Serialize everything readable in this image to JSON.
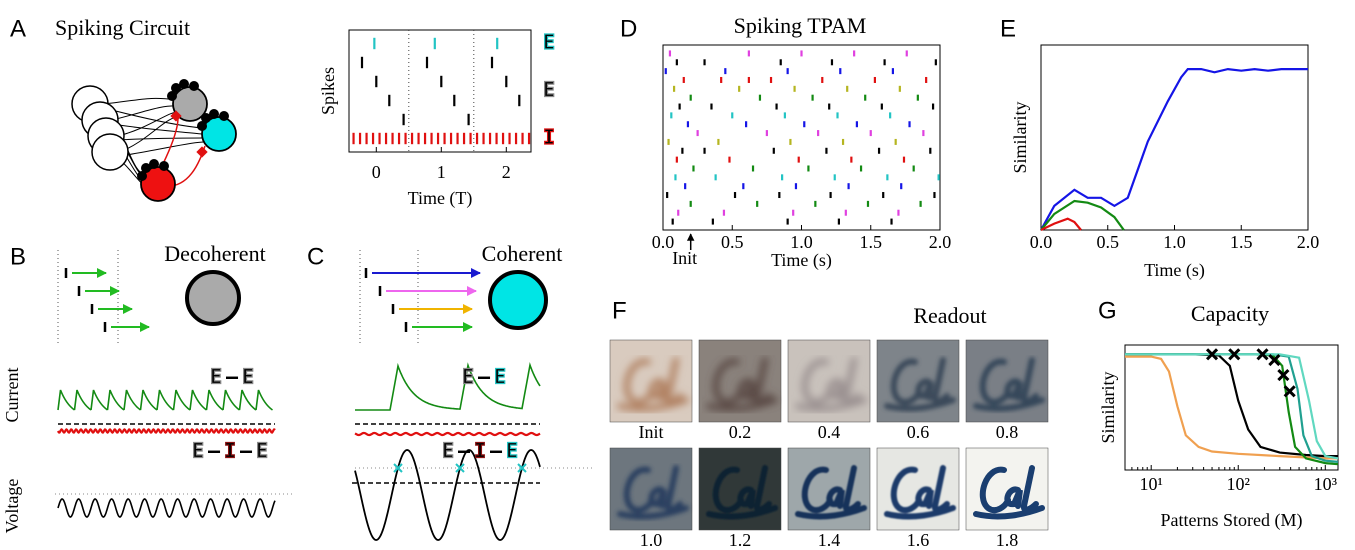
{
  "panels": {
    "A": {
      "letter": "A",
      "title": "Spiking Circuit"
    },
    "B": {
      "letter": "B",
      "title": "Decoherent",
      "current_label": "Current",
      "voltage_label": "Voltage",
      "ee": [
        "E",
        "–",
        "E"
      ],
      "eie": [
        "E",
        "–",
        "I",
        "–",
        "E"
      ]
    },
    "C": {
      "letter": "C",
      "title": "Coherent",
      "ee": [
        "E",
        "–",
        "E"
      ],
      "eie": [
        "E",
        "–",
        "I",
        "–",
        "E"
      ]
    },
    "D": {
      "letter": "D",
      "title": "Spiking TPAM"
    },
    "E": {
      "letter": "E"
    },
    "F": {
      "letter": "F",
      "title": "Readout",
      "images": [
        "Init",
        "0.2",
        "0.4",
        "0.6",
        "0.8",
        "1.0",
        "1.2",
        "1.4",
        "1.6",
        "1.8"
      ]
    },
    "G": {
      "letter": "G",
      "title": "Capacity"
    }
  },
  "chart_data": [
    {
      "type": "raster",
      "ylabel": "Spikes",
      "xlabel": "Time (T)",
      "xlim": [
        -0.42,
        2.38
      ],
      "xticks": [
        0,
        1,
        2
      ],
      "period_lines": [
        0.5,
        1.5
      ],
      "series": [
        {
          "name": "E",
          "color": "#22c4c4",
          "rows": [
            [
              -0.03,
              0.9,
              1.86
            ]
          ]
        },
        {
          "name": "E",
          "color": "#000000",
          "rows": [
            [
              -0.22,
              0.78,
              1.78
            ],
            [
              0.0,
              1.0,
              2.0
            ],
            [
              0.2,
              1.2,
              2.2
            ],
            [
              0.42,
              1.42
            ]
          ]
        },
        {
          "name": "I",
          "color": "#e01010",
          "rows": [
            [
              -0.35,
              -0.25,
              -0.15,
              -0.05,
              0.05,
              0.15,
              0.25,
              0.35,
              0.45,
              0.55,
              0.65,
              0.75,
              0.85,
              0.95,
              1.05,
              1.15,
              1.25,
              1.35,
              1.45,
              1.55,
              1.65,
              1.75,
              1.85,
              1.95,
              2.05,
              2.15,
              2.25,
              2.35
            ]
          ]
        }
      ]
    },
    {
      "type": "raster",
      "xlabel": "Time (s)",
      "annotation": {
        "text": "Init",
        "x": 0.2
      },
      "xlim": [
        0,
        2.0
      ],
      "xticks": [
        {
          "value": 0,
          "label": "0.0"
        },
        0.5,
        {
          "value": 1,
          "label": "1.0"
        },
        1.5,
        {
          "value": 2,
          "label": "2.0"
        }
      ],
      "rows": [
        {
          "color": "#e040e0",
          "x": [
            0.05,
            0.62,
            1.0,
            1.38,
            1.76
          ]
        },
        {
          "color": "#000000",
          "x": [
            0.1,
            0.3,
            0.85,
            1.22,
            1.6,
            1.97
          ]
        },
        {
          "color": "#1515e6",
          "x": [
            0.02,
            0.45,
            0.9,
            1.28,
            1.66
          ]
        },
        {
          "color": "#e01010",
          "x": [
            0.15,
            0.42,
            0.62,
            0.78,
            1.15,
            1.53,
            1.9
          ]
        },
        {
          "color": "#b5b520",
          "x": [
            0.08,
            0.55,
            0.95,
            1.33,
            1.71
          ]
        },
        {
          "color": "#138a13",
          "x": [
            0.2,
            0.7,
            1.08,
            1.46,
            1.84
          ]
        },
        {
          "color": "#000000",
          "x": [
            0.12,
            0.35,
            0.82,
            1.2,
            1.58,
            1.95
          ]
        },
        {
          "color": "#22c4c4",
          "x": [
            0.06,
            0.5,
            0.88,
            1.26,
            1.64
          ]
        },
        {
          "color": "#1515e6",
          "x": [
            0.18,
            0.6,
            1.02,
            1.4,
            1.78
          ]
        },
        {
          "color": "#e040e0",
          "x": [
            0.25,
            0.75,
            1.12,
            1.5,
            1.88
          ]
        },
        {
          "color": "#b5b520",
          "x": [
            0.04,
            0.4,
            0.92,
            1.3,
            1.68
          ]
        },
        {
          "color": "#000000",
          "x": [
            0.14,
            0.3,
            0.8,
            1.18,
            1.56,
            1.93
          ]
        },
        {
          "color": "#e01010",
          "x": [
            0.1,
            0.48,
            0.98,
            1.36,
            1.74
          ]
        },
        {
          "color": "#138a13",
          "x": [
            0.22,
            0.65,
            1.05,
            1.43,
            1.81
          ]
        },
        {
          "color": "#22c4c4",
          "x": [
            0.09,
            0.38,
            0.86,
            1.24,
            1.62,
            1.99
          ]
        },
        {
          "color": "#1515e6",
          "x": [
            0.16,
            0.58,
            0.96,
            1.34,
            1.72
          ]
        },
        {
          "color": "#000000",
          "x": [
            0.03,
            0.52,
            0.84,
            1.21,
            1.59,
            1.96
          ]
        },
        {
          "color": "#138a13",
          "x": [
            0.2,
            0.68,
            1.1,
            1.48,
            1.86
          ]
        },
        {
          "color": "#e040e0",
          "x": [
            0.11,
            0.44,
            0.94,
            1.32,
            1.7
          ]
        },
        {
          "color": "#000000",
          "x": [
            0.07,
            0.36,
            0.9,
            1.27,
            1.65
          ]
        }
      ]
    },
    {
      "type": "line",
      "ylabel": "Similarity",
      "xlabel": "Time (s)",
      "xlim": [
        0,
        2.0
      ],
      "ylim": [
        0,
        1.15
      ],
      "xticks": [
        {
          "value": 0,
          "label": "0.0"
        },
        0.5,
        {
          "value": 1,
          "label": "1.0"
        },
        1.5,
        {
          "value": 2,
          "label": "2.0"
        }
      ],
      "series": [
        {
          "color": "#1515e6",
          "x": [
            0,
            0.1,
            0.25,
            0.35,
            0.45,
            0.55,
            0.65,
            0.8,
            0.95,
            1.05,
            1.1,
            1.2,
            1.3,
            1.4,
            1.5,
            1.6,
            1.7,
            1.8,
            2.0
          ],
          "values": [
            0,
            0.15,
            0.25,
            0.2,
            0.2,
            0.15,
            0.2,
            0.55,
            0.8,
            0.95,
            1.0,
            1.0,
            0.98,
            1.0,
            0.99,
            1.0,
            0.99,
            1.0,
            1.0
          ]
        },
        {
          "color": "#138a13",
          "x": [
            0,
            0.1,
            0.25,
            0.35,
            0.45,
            0.55,
            0.62
          ],
          "values": [
            0,
            0.1,
            0.18,
            0.17,
            0.14,
            0.08,
            0
          ]
        },
        {
          "color": "#e01010",
          "x": [
            0,
            0.1,
            0.2,
            0.25,
            0.3
          ],
          "values": [
            0,
            0.04,
            0.07,
            0.05,
            0
          ]
        }
      ]
    },
    {
      "type": "line",
      "ylabel": "Similarity",
      "xlabel": "Patterns Stored (M)",
      "xlog": true,
      "xlim": [
        5,
        1400
      ],
      "ylim": [
        0,
        1.08
      ],
      "xticks": [
        {
          "value": 10,
          "label": "10¹"
        },
        {
          "value": 100,
          "label": "10²"
        },
        {
          "value": 1000,
          "label": "10³"
        }
      ],
      "series": [
        {
          "color": "#f0a050",
          "x": [
            5,
            10,
            13,
            16,
            20,
            25,
            35,
            50,
            100,
            300,
            1000,
            1400
          ],
          "values": [
            0.98,
            0.98,
            0.96,
            0.85,
            0.55,
            0.3,
            0.2,
            0.16,
            0.14,
            0.12,
            0.1,
            0.1
          ]
        },
        {
          "color": "#000000",
          "x": [
            5,
            30,
            60,
            80,
            100,
            130,
            180,
            300,
            600,
            1000,
            1400
          ],
          "values": [
            1,
            1,
            0.99,
            0.9,
            0.6,
            0.35,
            0.2,
            0.15,
            0.13,
            0.12,
            0.12
          ]
        },
        {
          "color": "#138a13",
          "x": [
            5,
            150,
            250,
            320,
            380,
            450,
            600,
            1000,
            1400
          ],
          "values": [
            1,
            1,
            0.99,
            0.9,
            0.5,
            0.2,
            0.1,
            0.06,
            0.05
          ]
        },
        {
          "color": "#20a090",
          "x": [
            5,
            250,
            380,
            480,
            560,
            700,
            1000,
            1400
          ],
          "values": [
            1,
            1,
            0.98,
            0.7,
            0.3,
            0.12,
            0.08,
            0.07
          ]
        },
        {
          "color": "#60d8c0",
          "x": [
            5,
            300,
            500,
            650,
            800,
            1000,
            1400
          ],
          "values": [
            1,
            1,
            0.97,
            0.6,
            0.25,
            0.12,
            0.1
          ]
        }
      ],
      "markers": {
        "x": [
          50,
          90,
          190,
          260,
          330,
          390
        ],
        "values": [
          1,
          1,
          1,
          0.95,
          0.82,
          0.68
        ]
      }
    }
  ]
}
